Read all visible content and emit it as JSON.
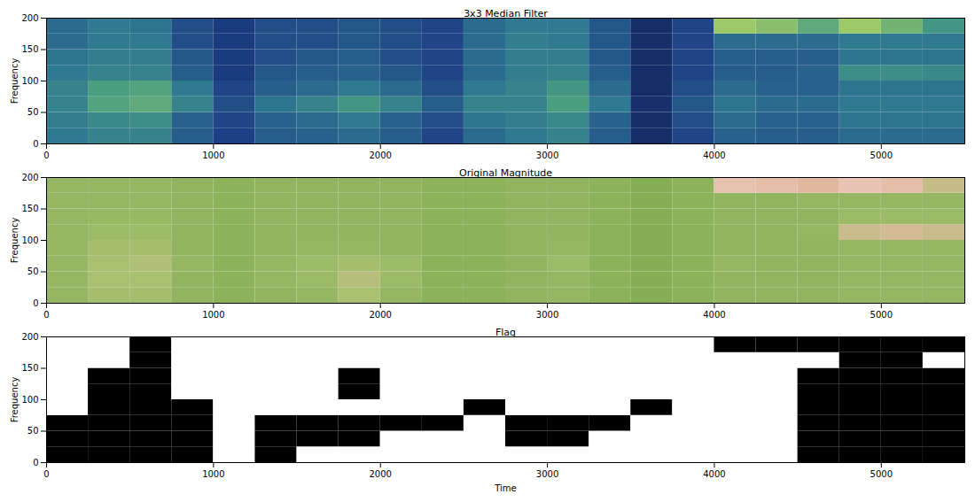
{
  "chart_data": [
    {
      "type": "heatmap",
      "title": "3x3 Median Filter",
      "y_label": "Frequency",
      "xlim": [
        0,
        5500
      ],
      "xticks": [
        0,
        1000,
        2000,
        3000,
        4000,
        5000
      ],
      "ylim": [
        0,
        200
      ],
      "yticks": [
        0,
        50,
        100,
        150,
        200
      ],
      "color": [
        "#0d1a4a",
        "#1d3f85",
        "#2f7a90",
        "#4a9f80",
        "#9cc868",
        "#f0e070"
      ],
      "zlim": [
        0,
        1
      ],
      "time_bins": [
        0,
        250,
        500,
        750,
        1000,
        1250,
        1500,
        1750,
        2000,
        2250,
        2500,
        2750,
        3000,
        3250,
        3500,
        3750,
        4000,
        4250,
        4500,
        4750,
        5000,
        5250,
        5500
      ],
      "frequency_bins": [
        0,
        25,
        50,
        75,
        100,
        125,
        150,
        175,
        200
      ],
      "cells": [
        [
          0.4,
          0.42,
          0.45,
          0.45,
          0.4,
          0.38,
          0.35,
          0.35
        ],
        [
          0.45,
          0.48,
          0.62,
          0.6,
          0.45,
          0.42,
          0.4,
          0.4
        ],
        [
          0.45,
          0.5,
          0.65,
          0.62,
          0.45,
          0.42,
          0.4,
          0.38
        ],
        [
          0.3,
          0.32,
          0.45,
          0.4,
          0.3,
          0.28,
          0.25,
          0.25
        ],
        [
          0.2,
          0.22,
          0.25,
          0.22,
          0.18,
          0.18,
          0.18,
          0.18
        ],
        [
          0.3,
          0.32,
          0.38,
          0.3,
          0.28,
          0.25,
          0.25,
          0.25
        ],
        [
          0.32,
          0.35,
          0.45,
          0.35,
          0.3,
          0.28,
          0.25,
          0.25
        ],
        [
          0.35,
          0.4,
          0.55,
          0.4,
          0.32,
          0.3,
          0.28,
          0.28
        ],
        [
          0.3,
          0.32,
          0.45,
          0.35,
          0.28,
          0.25,
          0.25,
          0.25
        ],
        [
          0.22,
          0.25,
          0.3,
          0.25,
          0.22,
          0.22,
          0.22,
          0.22
        ],
        [
          0.35,
          0.38,
          0.45,
          0.4,
          0.35,
          0.35,
          0.35,
          0.35
        ],
        [
          0.4,
          0.42,
          0.45,
          0.45,
          0.42,
          0.42,
          0.42,
          0.4
        ],
        [
          0.45,
          0.48,
          0.6,
          0.55,
          0.45,
          0.42,
          0.4,
          0.4
        ],
        [
          0.3,
          0.32,
          0.4,
          0.35,
          0.3,
          0.28,
          0.28,
          0.28
        ],
        [
          0.1,
          0.1,
          0.12,
          0.1,
          0.1,
          0.1,
          0.1,
          0.1
        ],
        [
          0.22,
          0.25,
          0.28,
          0.25,
          0.22,
          0.22,
          0.22,
          0.22
        ],
        [
          0.32,
          0.35,
          0.38,
          0.35,
          0.3,
          0.3,
          0.35,
          0.8
        ],
        [
          0.3,
          0.32,
          0.35,
          0.32,
          0.3,
          0.3,
          0.35,
          0.75
        ],
        [
          0.3,
          0.32,
          0.35,
          0.32,
          0.32,
          0.3,
          0.35,
          0.65
        ],
        [
          0.35,
          0.38,
          0.4,
          0.38,
          0.5,
          0.38,
          0.4,
          0.8
        ],
        [
          0.35,
          0.38,
          0.4,
          0.38,
          0.5,
          0.38,
          0.4,
          0.7
        ],
        [
          0.35,
          0.38,
          0.4,
          0.38,
          0.48,
          0.38,
          0.4,
          0.55
        ]
      ]
    },
    {
      "type": "heatmap",
      "title": "Original Magnitude",
      "y_label": "Frequency",
      "xlim": [
        0,
        5500
      ],
      "xticks": [
        0,
        1000,
        2000,
        3000,
        4000,
        5000
      ],
      "ylim": [
        0,
        200
      ],
      "yticks": [
        0,
        50,
        100,
        150,
        200
      ],
      "color": [
        "#1f4f3a",
        "#4d8a4e",
        "#7aa84f",
        "#a9c070",
        "#e0b8a0",
        "#f2cfc8"
      ],
      "zlim": [
        0,
        1
      ],
      "time_bins": [
        0,
        250,
        500,
        750,
        1000,
        1250,
        1500,
        1750,
        2000,
        2250,
        2500,
        2750,
        3000,
        3250,
        3500,
        3750,
        4000,
        4250,
        4500,
        4750,
        5000,
        5250,
        5500
      ],
      "frequency_bins": [
        0,
        25,
        50,
        75,
        100,
        125,
        150,
        175,
        200
      ],
      "cells": [
        [
          0.52,
          0.52,
          0.52,
          0.52,
          0.52,
          0.52,
          0.52,
          0.52
        ],
        [
          0.58,
          0.6,
          0.6,
          0.58,
          0.55,
          0.53,
          0.52,
          0.52
        ],
        [
          0.58,
          0.6,
          0.62,
          0.58,
          0.55,
          0.53,
          0.52,
          0.52
        ],
        [
          0.5,
          0.5,
          0.52,
          0.5,
          0.5,
          0.5,
          0.5,
          0.5
        ],
        [
          0.48,
          0.48,
          0.48,
          0.48,
          0.48,
          0.48,
          0.48,
          0.48
        ],
        [
          0.5,
          0.52,
          0.52,
          0.5,
          0.5,
          0.5,
          0.5,
          0.5
        ],
        [
          0.52,
          0.55,
          0.55,
          0.52,
          0.5,
          0.5,
          0.5,
          0.5
        ],
        [
          0.6,
          0.65,
          0.58,
          0.52,
          0.5,
          0.5,
          0.5,
          0.5
        ],
        [
          0.52,
          0.55,
          0.55,
          0.5,
          0.5,
          0.5,
          0.5,
          0.5
        ],
        [
          0.48,
          0.48,
          0.48,
          0.48,
          0.48,
          0.48,
          0.48,
          0.48
        ],
        [
          0.48,
          0.48,
          0.48,
          0.48,
          0.48,
          0.48,
          0.48,
          0.48
        ],
        [
          0.5,
          0.5,
          0.5,
          0.5,
          0.5,
          0.5,
          0.5,
          0.5
        ],
        [
          0.52,
          0.52,
          0.55,
          0.52,
          0.5,
          0.5,
          0.5,
          0.5
        ],
        [
          0.48,
          0.48,
          0.48,
          0.48,
          0.48,
          0.48,
          0.48,
          0.48
        ],
        [
          0.45,
          0.45,
          0.45,
          0.45,
          0.45,
          0.45,
          0.45,
          0.45
        ],
        [
          0.48,
          0.48,
          0.48,
          0.48,
          0.48,
          0.48,
          0.48,
          0.48
        ],
        [
          0.5,
          0.5,
          0.52,
          0.5,
          0.5,
          0.5,
          0.5,
          0.88
        ],
        [
          0.5,
          0.5,
          0.5,
          0.5,
          0.5,
          0.5,
          0.5,
          0.85
        ],
        [
          0.5,
          0.5,
          0.5,
          0.5,
          0.52,
          0.5,
          0.52,
          0.8
        ],
        [
          0.52,
          0.52,
          0.52,
          0.52,
          0.72,
          0.55,
          0.52,
          0.9
        ],
        [
          0.52,
          0.52,
          0.52,
          0.52,
          0.75,
          0.55,
          0.52,
          0.85
        ],
        [
          0.52,
          0.52,
          0.52,
          0.52,
          0.72,
          0.55,
          0.52,
          0.7
        ]
      ]
    },
    {
      "type": "heatmap",
      "title": "Flag",
      "x_label": "Time",
      "y_label": "Frequency",
      "xlim": [
        0,
        5500
      ],
      "xticks": [
        0,
        1000,
        2000,
        3000,
        4000,
        5000
      ],
      "ylim": [
        0,
        200
      ],
      "yticks": [
        0,
        50,
        100,
        150,
        200
      ],
      "color": [
        "#ffffff",
        "#000000"
      ],
      "zlim": [
        0,
        1
      ],
      "time_bins": [
        0,
        250,
        500,
        750,
        1000,
        1250,
        1500,
        1750,
        2000,
        2250,
        2500,
        2750,
        3000,
        3250,
        3500,
        3750,
        4000,
        4250,
        4500,
        4750,
        5000,
        5250,
        5500
      ],
      "frequency_bins": [
        0,
        25,
        50,
        75,
        100,
        125,
        150,
        175,
        200
      ],
      "cells": [
        [
          1,
          1,
          1,
          0,
          0,
          0,
          0,
          0
        ],
        [
          1,
          1,
          1,
          1,
          1,
          1,
          0,
          0
        ],
        [
          1,
          1,
          1,
          1,
          1,
          1,
          1,
          1
        ],
        [
          1,
          1,
          1,
          1,
          0,
          0,
          0,
          0
        ],
        [
          0,
          0,
          0,
          0,
          0,
          0,
          0,
          0
        ],
        [
          1,
          1,
          1,
          0,
          0,
          0,
          0,
          0
        ],
        [
          0,
          1,
          1,
          0,
          0,
          0,
          0,
          0
        ],
        [
          0,
          1,
          1,
          0,
          1,
          1,
          0,
          0
        ],
        [
          0,
          0,
          1,
          0,
          0,
          0,
          0,
          0
        ],
        [
          0,
          0,
          1,
          0,
          0,
          0,
          0,
          0
        ],
        [
          0,
          0,
          0,
          1,
          0,
          0,
          0,
          0
        ],
        [
          0,
          1,
          1,
          0,
          0,
          0,
          0,
          0
        ],
        [
          0,
          1,
          1,
          0,
          0,
          0,
          0,
          0
        ],
        [
          0,
          0,
          1,
          0,
          0,
          0,
          0,
          0
        ],
        [
          0,
          0,
          0,
          1,
          0,
          0,
          0,
          0
        ],
        [
          0,
          0,
          0,
          0,
          0,
          0,
          0,
          0
        ],
        [
          0,
          0,
          0,
          0,
          0,
          0,
          0,
          1
        ],
        [
          0,
          0,
          0,
          0,
          0,
          0,
          0,
          1
        ],
        [
          1,
          1,
          1,
          1,
          1,
          1,
          0,
          1
        ],
        [
          1,
          1,
          1,
          1,
          1,
          1,
          1,
          1
        ],
        [
          1,
          1,
          1,
          1,
          1,
          1,
          1,
          1
        ],
        [
          1,
          1,
          1,
          1,
          1,
          1,
          0,
          1
        ]
      ]
    }
  ]
}
